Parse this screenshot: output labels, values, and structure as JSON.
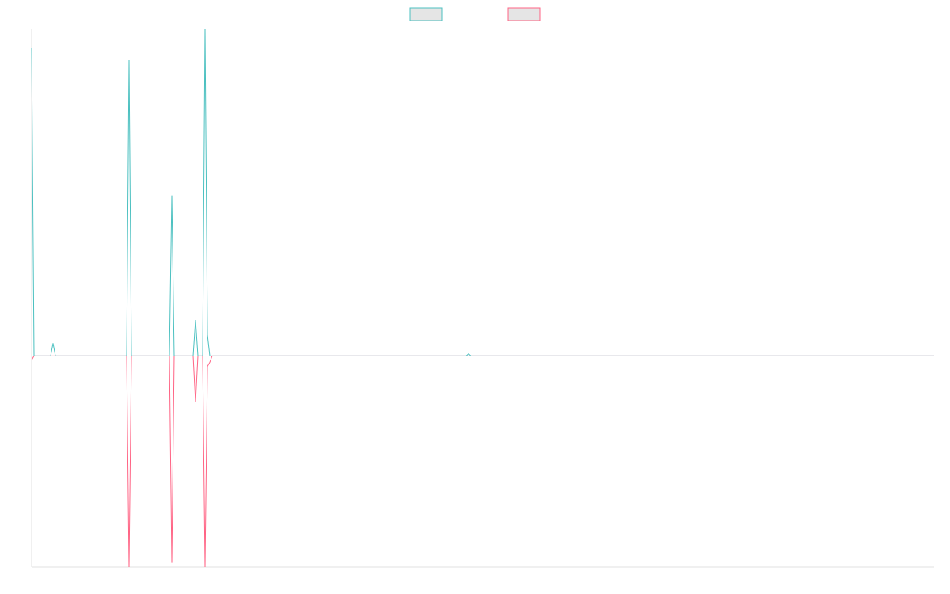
{
  "chart_data": {
    "type": "line",
    "title": "",
    "xlabel": "",
    "ylabel": "",
    "legend_position": "top-center",
    "grid": false,
    "x_range": [
      0,
      380
    ],
    "ylim": [
      -100,
      155
    ],
    "series": [
      {
        "color": "#4bc0c0",
        "fill": "#e5e5e5",
        "points": [
          [
            0,
            146
          ],
          [
            1,
            0
          ],
          [
            8,
            0
          ],
          [
            9,
            6
          ],
          [
            10,
            0
          ],
          [
            40,
            0
          ],
          [
            41,
            140
          ],
          [
            42,
            0
          ],
          [
            58,
            0
          ],
          [
            59,
            76
          ],
          [
            60,
            0
          ],
          [
            68,
            0
          ],
          [
            69,
            17
          ],
          [
            70,
            0
          ],
          [
            72,
            0
          ],
          [
            73,
            155
          ],
          [
            74,
            10
          ],
          [
            75,
            0
          ],
          [
            183,
            0
          ],
          [
            184,
            1
          ],
          [
            185,
            0
          ],
          [
            380,
            0
          ]
        ]
      },
      {
        "color": "#ff6384",
        "fill": "#e5e5e5",
        "points": [
          [
            0,
            -2
          ],
          [
            1,
            0
          ],
          [
            40,
            0
          ],
          [
            41,
            -100
          ],
          [
            42,
            0
          ],
          [
            58,
            0
          ],
          [
            59,
            -98
          ],
          [
            60,
            0
          ],
          [
            68,
            0
          ],
          [
            69,
            -22
          ],
          [
            70,
            0
          ],
          [
            72,
            0
          ],
          [
            73,
            -100
          ],
          [
            74,
            -5
          ],
          [
            75,
            -3
          ],
          [
            76,
            0
          ],
          [
            380,
            0
          ]
        ]
      }
    ],
    "axis_color": "#e0e0e0"
  }
}
